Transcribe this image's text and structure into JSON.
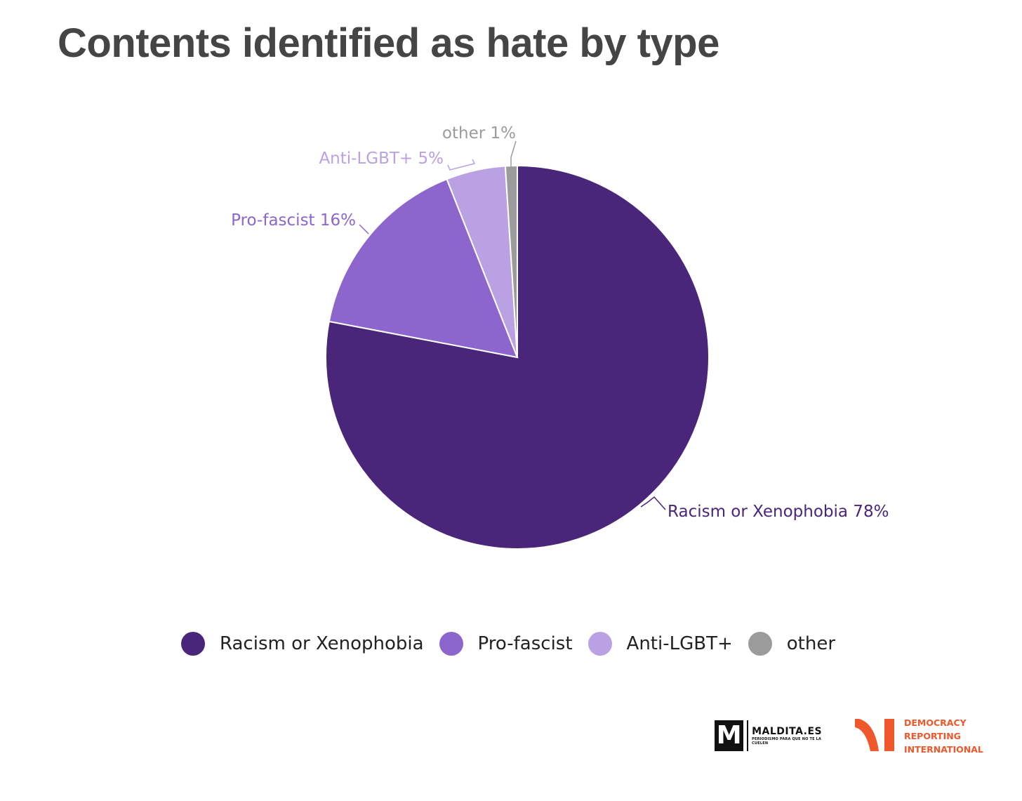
{
  "chart_data": {
    "type": "pie",
    "title": "Contents identified as hate by type",
    "slices": [
      {
        "name": "Racism or Xenophobia",
        "value": 78,
        "label": "Racism or Xenophobia 78%",
        "color": "#4a267a"
      },
      {
        "name": "Pro-fascist",
        "value": 16,
        "label": "Pro-fascist 16%",
        "color": "#8c66cc"
      },
      {
        "name": "Anti-LGBT+",
        "value": 5,
        "label": "Anti-LGBT+ 5%",
        "color": "#b9a1e3"
      },
      {
        "name": "other",
        "value": 1,
        "label": "other 1%",
        "color": "#9b9b9b"
      }
    ],
    "legend": {
      "position": "bottom",
      "items": [
        "Racism or Xenophobia",
        "Pro-fascist",
        "Anti-LGBT+",
        "other"
      ]
    }
  },
  "logos": {
    "maldita": {
      "mark": "M",
      "name": "MALDITA.ES",
      "tagline": "PERIODISMO PARA QUE NO TE LA CUELEN"
    },
    "dri": {
      "lines": [
        "DEMOCRACY",
        "REPORTING",
        "INTERNATIONAL"
      ],
      "color": "#f0572a"
    }
  }
}
